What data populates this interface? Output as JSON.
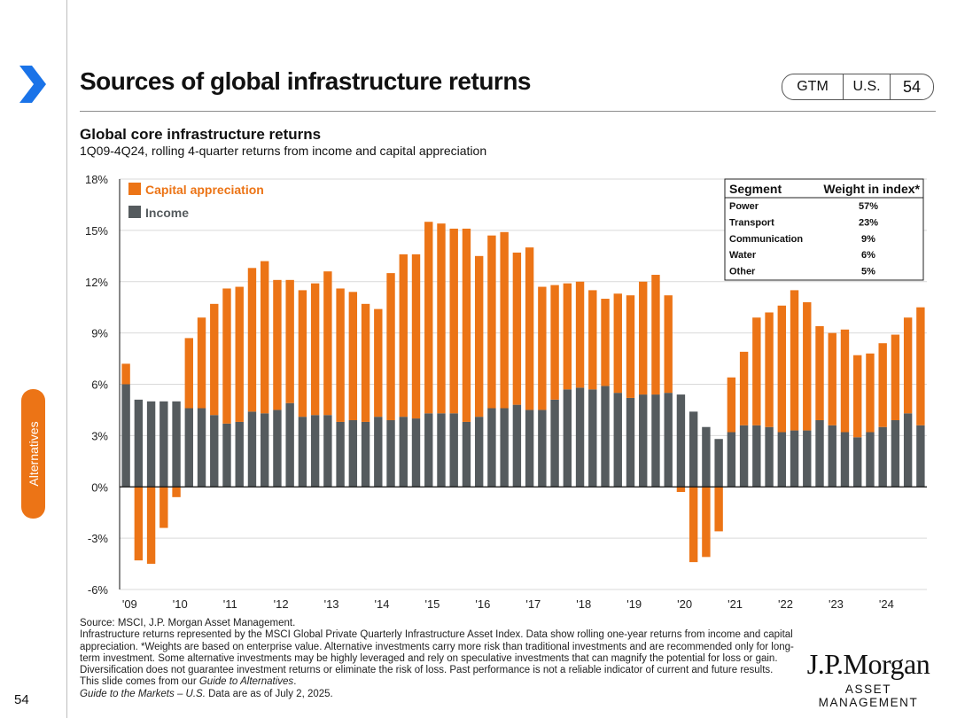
{
  "header": {
    "title": "Sources of global infrastructure returns",
    "gtm_label": "GTM",
    "region_label": "U.S.",
    "page_number": "54"
  },
  "sidebar": {
    "tab_label": "Alternatives",
    "page_number": "54"
  },
  "colors": {
    "capital": "#ec7416",
    "income": "#555b5e",
    "accent": "#ec7416"
  },
  "chart_data": {
    "type": "bar",
    "stacked": true,
    "title": "Global core infrastructure returns",
    "subtitle": "1Q09-4Q24, rolling 4-quarter returns from income and capital appreciation",
    "xlabel": "",
    "ylabel": "",
    "ylim": [
      -6,
      18
    ],
    "yticks": [
      -6,
      -3,
      0,
      3,
      6,
      9,
      12,
      15,
      18
    ],
    "ytick_labels": [
      "-6%",
      "-3%",
      "0%",
      "3%",
      "6%",
      "9%",
      "12%",
      "15%",
      "18%"
    ],
    "xtick_labels": [
      "'09",
      "'10",
      "'11",
      "'12",
      "'13",
      "'14",
      "'15",
      "'16",
      "'17",
      "'18",
      "'19",
      "'20",
      "'21",
      "'22",
      "'23",
      "'24"
    ],
    "grid": true,
    "legend": [
      "Capital appreciation",
      "Income"
    ],
    "categories": [
      "1Q09",
      "2Q09",
      "3Q09",
      "4Q09",
      "1Q10",
      "2Q10",
      "3Q10",
      "4Q10",
      "1Q11",
      "2Q11",
      "3Q11",
      "4Q11",
      "1Q12",
      "2Q12",
      "3Q12",
      "4Q12",
      "1Q13",
      "2Q13",
      "3Q13",
      "4Q13",
      "1Q14",
      "2Q14",
      "3Q14",
      "4Q14",
      "1Q15",
      "2Q15",
      "3Q15",
      "4Q15",
      "1Q16",
      "2Q16",
      "3Q16",
      "4Q16",
      "1Q17",
      "2Q17",
      "3Q17",
      "4Q17",
      "1Q18",
      "2Q18",
      "3Q18",
      "4Q18",
      "1Q19",
      "2Q19",
      "3Q19",
      "4Q19",
      "1Q20",
      "2Q20",
      "3Q20",
      "4Q20",
      "1Q21",
      "2Q21",
      "3Q21",
      "4Q21",
      "1Q22",
      "2Q22",
      "3Q22",
      "4Q22",
      "1Q23",
      "2Q23",
      "3Q23",
      "4Q23",
      "1Q24",
      "2Q24",
      "3Q24",
      "4Q24"
    ],
    "series": [
      {
        "name": "Income",
        "values": [
          6.0,
          5.1,
          5.0,
          5.0,
          5.0,
          4.6,
          4.6,
          4.2,
          3.7,
          3.8,
          4.4,
          4.3,
          4.5,
          4.9,
          4.1,
          4.2,
          4.2,
          3.8,
          3.9,
          3.8,
          4.1,
          3.9,
          4.1,
          4.0,
          4.3,
          4.3,
          4.3,
          3.8,
          4.1,
          4.6,
          4.6,
          4.8,
          4.5,
          4.5,
          5.1,
          5.7,
          5.8,
          5.7,
          5.9,
          5.5,
          5.2,
          5.4,
          5.4,
          5.5,
          5.4,
          4.4,
          3.5,
          2.8,
          3.2,
          3.6,
          3.6,
          3.5,
          3.2,
          3.3,
          3.3,
          3.9,
          3.6,
          3.2,
          2.9,
          3.2,
          3.5,
          3.9,
          4.3,
          3.6
        ]
      },
      {
        "name": "Capital appreciation",
        "values": [
          1.2,
          -4.3,
          -4.5,
          -2.4,
          -0.6,
          4.1,
          5.3,
          6.5,
          7.9,
          7.9,
          8.4,
          8.9,
          7.6,
          7.2,
          7.4,
          7.7,
          8.4,
          7.8,
          7.5,
          6.9,
          6.3,
          8.6,
          9.5,
          9.6,
          11.2,
          11.1,
          10.8,
          11.3,
          9.4,
          10.1,
          10.3,
          8.9,
          9.5,
          7.2,
          6.7,
          6.2,
          6.2,
          5.8,
          5.1,
          5.8,
          6.0,
          6.6,
          7.0,
          5.7,
          -0.3,
          -4.4,
          -4.1,
          -2.6,
          3.2,
          4.3,
          6.3,
          6.7,
          7.4,
          8.2,
          7.5,
          5.5,
          5.4,
          6.0,
          4.8,
          4.6,
          4.9,
          5.0,
          5.6,
          6.9
        ]
      }
    ],
    "table": {
      "headers": [
        "Segment",
        "Weight in index*"
      ],
      "rows": [
        [
          "Power",
          "57%"
        ],
        [
          "Transport",
          "23%"
        ],
        [
          "Communication",
          "9%"
        ],
        [
          "Water",
          "6%"
        ],
        [
          "Other",
          "5%"
        ]
      ]
    }
  },
  "footnotes": {
    "source": "Source: MSCI, J.P. Morgan Asset Management.",
    "note": "Infrastructure returns represented by the MSCI Global Private Quarterly Infrastructure Asset Index. Data show rolling one-year returns from income and capital appreciation. *Weights are based on enterprise value. Alternative investments carry more risk than traditional investments and are recommended only for long-term investment. Some alternative investments may be highly leveraged and rely on speculative investments that can magnify the potential for loss or gain. Diversification does not guarantee investment returns or eliminate the risk of loss. Past performance is not a reliable indicator of current and future results.",
    "guide_prefix": "This slide comes from our ",
    "guide_name": "Guide to Alternatives",
    "guide_suffix": ".",
    "gtm_name": "Guide to the Markets – U.S.",
    "data_date": " Data are as of July 2, 2025."
  },
  "logo": {
    "main": "J.P.Morgan",
    "sub": "ASSET MANAGEMENT"
  }
}
